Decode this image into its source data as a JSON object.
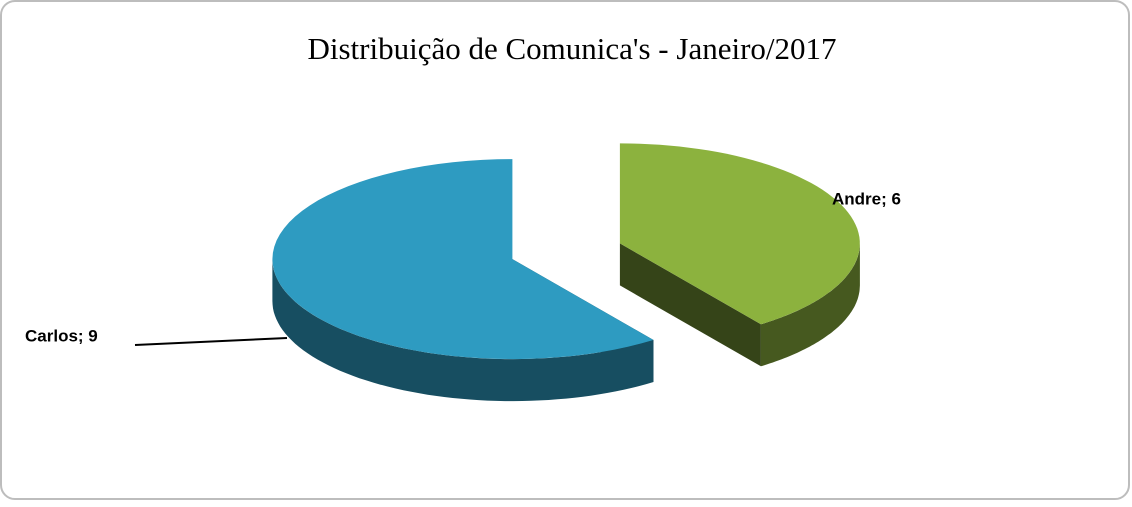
{
  "chart_data": {
    "type": "pie",
    "title": "Distribuição de Comunica's - Janeiro/2017",
    "values": [
      6,
      9
    ],
    "value_labels": [
      "Andre; 6",
      "Carlos; 9"
    ],
    "colors": [
      "#8cb23e",
      "#2e9bc1"
    ]
  }
}
